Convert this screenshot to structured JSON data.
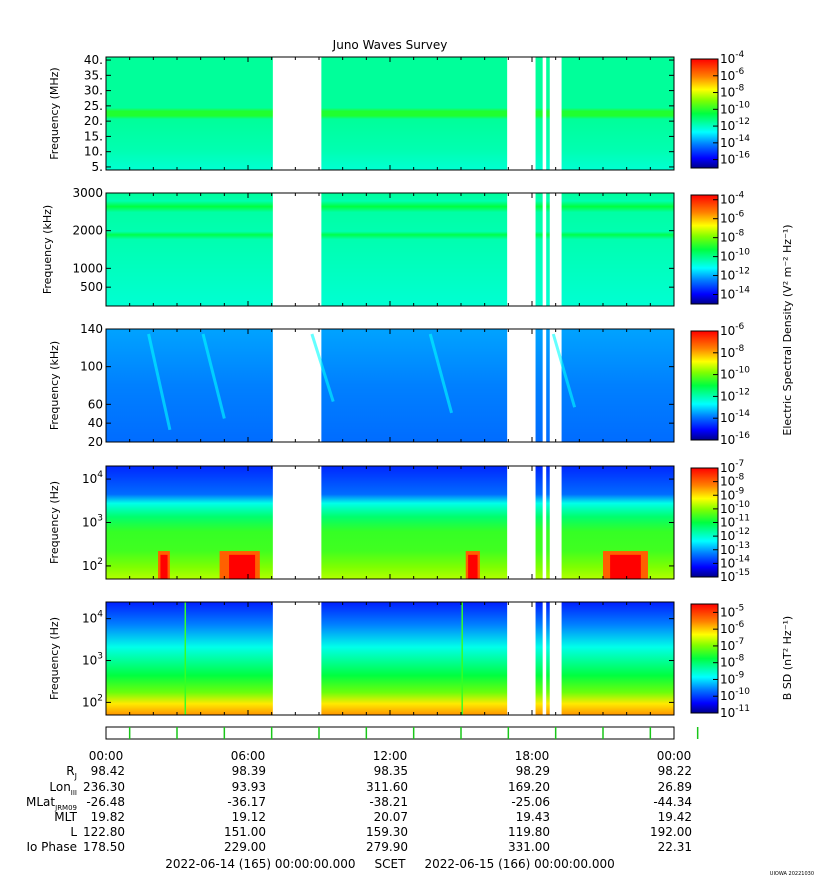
{
  "chart_data": {
    "type": "heatmap",
    "title": "Juno Waves Survey",
    "time_ticks": [
      "00:00",
      "06:00",
      "12:00",
      "18:00",
      "00:00"
    ],
    "panels": [
      {
        "id": "hfwbr",
        "ylabel": "Frequency (MHz)",
        "yscale": "linear",
        "ylim": [
          4,
          41
        ],
        "yticks": [
          {
            "v": 5,
            "l": "5."
          },
          {
            "v": 10,
            "l": "10."
          },
          {
            "v": 15,
            "l": "15."
          },
          {
            "v": 20,
            "l": "20."
          },
          {
            "v": 25,
            "l": "25."
          },
          {
            "v": 30,
            "l": "30."
          },
          {
            "v": 35,
            "l": "35."
          },
          {
            "v": 40,
            "l": "40."
          }
        ],
        "colorbar": {
          "min_exp": -17,
          "max_exp": -4,
          "labeled_exps": [
            -4,
            -6,
            -8,
            -10,
            -12,
            -14,
            -16
          ]
        }
      },
      {
        "id": "hfr",
        "ylabel": "Frequency (kHz)",
        "yscale": "linear",
        "ylim": [
          0,
          3000
        ],
        "yticks": [
          {
            "v": 500,
            "l": "500"
          },
          {
            "v": 1000,
            "l": "1000"
          },
          {
            "v": 2000,
            "l": "2000"
          },
          {
            "v": 3000,
            "l": "3000"
          }
        ],
        "colorbar": {
          "min_exp": -15,
          "max_exp": -3.5,
          "labeled_exps": [
            -4,
            -6,
            -8,
            -10,
            -12,
            -14
          ]
        }
      },
      {
        "id": "lfr_high",
        "ylabel": "Frequency (kHz)",
        "yscale": "linear",
        "ylim": [
          20,
          140
        ],
        "yticks": [
          {
            "v": 20,
            "l": "20"
          },
          {
            "v": 40,
            "l": "40"
          },
          {
            "v": 60,
            "l": "60"
          },
          {
            "v": 100,
            "l": "100"
          },
          {
            "v": 140,
            "l": "140"
          }
        ],
        "colorbar": {
          "min_exp": -16,
          "max_exp": -6,
          "labeled_exps": [
            -6,
            -8,
            -10,
            -12,
            -14,
            -16
          ]
        }
      },
      {
        "id": "lfr_low",
        "ylabel": "Frequency (Hz)",
        "yscale": "log",
        "ylim": [
          50,
          20000
        ],
        "yticks": [
          {
            "v": 100,
            "l": "10",
            "e": "2"
          },
          {
            "v": 1000,
            "l": "10",
            "e": "3"
          },
          {
            "v": 10000,
            "l": "10",
            "e": "4"
          }
        ],
        "colorbar": {
          "min_exp": -15,
          "max_exp": -7,
          "labeled_exps": [
            -7,
            -8,
            -9,
            -10,
            -11,
            -12,
            -13,
            -14,
            -15
          ]
        }
      },
      {
        "id": "bfield",
        "ylabel": "Frequency (Hz)",
        "yscale": "log",
        "ylim": [
          50,
          25000
        ],
        "yticks": [
          {
            "v": 100,
            "l": "10",
            "e": "2"
          },
          {
            "v": 1000,
            "l": "10",
            "e": "3"
          },
          {
            "v": 10000,
            "l": "10",
            "e": "4"
          }
        ],
        "colorbar": {
          "min_exp": -11,
          "max_exp": -4.5,
          "labeled_exps": [
            -5,
            -6,
            -7,
            -8,
            -9,
            -10,
            -11
          ]
        }
      }
    ],
    "colorbar_title_electric": "Electric Spectral Density (V² m⁻² Hz⁻¹)",
    "colorbar_title_magnetic": "B SD (nT² Hz⁻¹)",
    "data_gaps_hours": [
      [
        7.05,
        9.1
      ],
      [
        16.95,
        18.15
      ],
      [
        18.45,
        18.6
      ],
      [
        18.75,
        19.25
      ]
    ],
    "ephemeris_labels": [
      "RJ",
      "LonIII",
      "MLatJRM09",
      "MLT",
      "L",
      "Io Phase"
    ],
    "ephemeris": [
      [
        "98.42",
        "98.39",
        "98.35",
        "98.29",
        "98.22"
      ],
      [
        "236.30",
        "93.93",
        "311.60",
        "169.20",
        "26.89"
      ],
      [
        "-26.48",
        "-36.17",
        "-38.21",
        "-25.06",
        "-44.34"
      ],
      [
        "19.82",
        "19.12",
        "20.07",
        "19.43",
        "19.42"
      ],
      [
        "122.80",
        "151.00",
        "159.30",
        "119.80",
        "192.00"
      ],
      [
        "178.50",
        "229.00",
        "279.90",
        "331.00",
        "22.31"
      ]
    ],
    "footer": "2022-06-14 (165) 00:00:00.000     SCET     2022-06-15 (166) 00:00:00.000",
    "credit": "UIOWA 20221030"
  }
}
